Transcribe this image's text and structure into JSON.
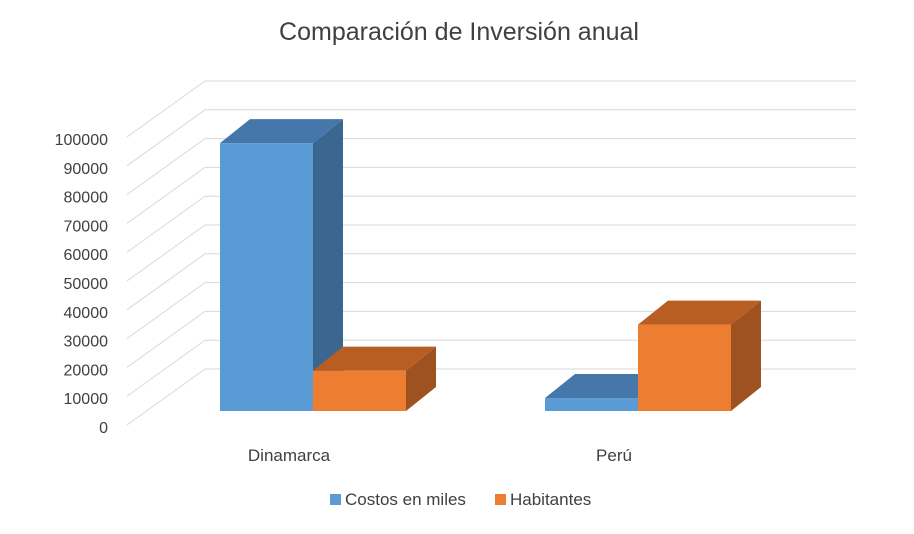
{
  "chart_data": {
    "type": "bar",
    "title": "Comparación de Inversión anual",
    "xlabel": "",
    "ylabel": "",
    "categories": [
      "Dinamarca",
      "Perú"
    ],
    "series": [
      {
        "name": "Costos en miles",
        "values": [
          93000,
          4500
        ],
        "color": "#5b9bd5",
        "side_color": "#3a6690",
        "top_color": "#4577aa"
      },
      {
        "name": "Habitantes",
        "values": [
          14000,
          30000
        ],
        "color": "#ed7d31",
        "side_color": "#9e521f",
        "top_color": "#b85e22"
      }
    ],
    "ylim": [
      0,
      100000
    ],
    "yticks": [
      0,
      10000,
      20000,
      30000,
      40000,
      50000,
      60000,
      70000,
      80000,
      90000,
      100000
    ],
    "grid": true,
    "legend_position": "bottom",
    "colors": {
      "grid": "#d9d9d9",
      "text": "#404040"
    }
  }
}
